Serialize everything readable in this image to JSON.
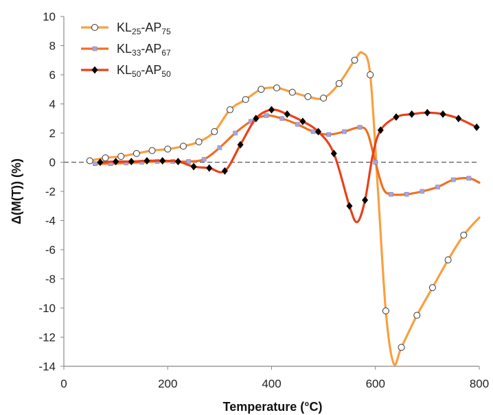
{
  "chart_data": {
    "type": "line",
    "xlabel": "Temperature (°C)",
    "ylabel": "Δ(M(T)) (%)",
    "xlim": [
      0,
      800
    ],
    "ylim": [
      -14,
      10
    ],
    "x_ticks": [
      0,
      200,
      400,
      600,
      800
    ],
    "y_ticks": [
      -14,
      -12,
      -10,
      -8,
      -6,
      -4,
      -2,
      0,
      2,
      4,
      6,
      8,
      10
    ],
    "reference_line": {
      "y": 0,
      "style": "dashed"
    },
    "legend": {
      "placement": "top-left"
    },
    "series": [
      {
        "name": "KL25-AP75",
        "name_parts": [
          {
            "t": "KL",
            "sub": false
          },
          {
            "t": "25",
            "sub": true
          },
          {
            "t": "-AP",
            "sub": false
          },
          {
            "t": "75",
            "sub": true
          }
        ],
        "color": "#F7A040",
        "marker": "circle-open",
        "marker_x": [
          50,
          80,
          110,
          140,
          170,
          200,
          230,
          260,
          290,
          320,
          350,
          380,
          410,
          440,
          470,
          500,
          530,
          560,
          590,
          620,
          650,
          680,
          710,
          740,
          770
        ],
        "marker_y": [
          0.1,
          0.3,
          0.4,
          0.6,
          0.8,
          0.9,
          1.1,
          1.4,
          2.1,
          3.6,
          4.3,
          5.0,
          5.1,
          4.8,
          4.5,
          4.4,
          5.4,
          7.0,
          6.0,
          -10.2,
          -12.7,
          -10.5,
          -8.6,
          -6.7,
          -5.0
        ],
        "curve_x": [
          50,
          80,
          110,
          140,
          170,
          200,
          230,
          260,
          290,
          320,
          350,
          380,
          410,
          440,
          470,
          500,
          530,
          560,
          575,
          590,
          605,
          620,
          635,
          650,
          680,
          710,
          740,
          770,
          800
        ],
        "curve_y": [
          0.1,
          0.3,
          0.4,
          0.6,
          0.8,
          0.9,
          1.1,
          1.4,
          2.1,
          3.6,
          4.3,
          5.0,
          5.1,
          4.8,
          4.5,
          4.4,
          5.4,
          7.0,
          7.5,
          6.0,
          -2.0,
          -10.2,
          -13.8,
          -12.7,
          -10.5,
          -8.6,
          -6.7,
          -5.0,
          -3.8
        ]
      },
      {
        "name": "KL33-AP67",
        "name_parts": [
          {
            "t": "KL",
            "sub": false
          },
          {
            "t": "33",
            "sub": true
          },
          {
            "t": "-AP",
            "sub": false
          },
          {
            "t": "67",
            "sub": true
          }
        ],
        "color": "#F07020",
        "marker": "square-lavender",
        "marker_x": [
          60,
          90,
          120,
          150,
          180,
          210,
          240,
          270,
          300,
          330,
          360,
          390,
          420,
          450,
          480,
          510,
          540,
          570,
          600,
          630,
          660,
          690,
          720,
          750,
          780
        ],
        "marker_y": [
          -0.1,
          -0.1,
          -0.05,
          0.0,
          0.05,
          0.05,
          0.05,
          0.2,
          1.0,
          2.0,
          2.8,
          3.2,
          3.0,
          2.6,
          2.1,
          1.9,
          2.1,
          2.4,
          0.0,
          -2.2,
          -2.2,
          -2.0,
          -1.7,
          -1.2,
          -1.1
        ],
        "curve_x": [
          60,
          90,
          120,
          150,
          180,
          210,
          240,
          270,
          300,
          330,
          360,
          390,
          420,
          450,
          480,
          510,
          540,
          570,
          585,
          600,
          615,
          630,
          660,
          690,
          720,
          750,
          780,
          800
        ],
        "curve_y": [
          -0.1,
          -0.1,
          -0.05,
          0.0,
          0.05,
          0.05,
          0.05,
          0.2,
          1.0,
          2.0,
          2.8,
          3.2,
          3.0,
          2.6,
          2.1,
          1.9,
          2.1,
          2.4,
          2.0,
          0.0,
          -1.8,
          -2.2,
          -2.2,
          -2.0,
          -1.7,
          -1.2,
          -1.1,
          -1.4
        ]
      },
      {
        "name": "KL50-AP50",
        "name_parts": [
          {
            "t": "KL",
            "sub": false
          },
          {
            "t": "50",
            "sub": true
          },
          {
            "t": "-AP",
            "sub": false
          },
          {
            "t": "50",
            "sub": true
          }
        ],
        "color": "#E8401C",
        "marker": "diamond-black",
        "marker_x": [
          70,
          100,
          130,
          160,
          190,
          220,
          250,
          280,
          310,
          340,
          370,
          400,
          430,
          460,
          490,
          520,
          550,
          580,
          610,
          640,
          670,
          700,
          730,
          760,
          795
        ],
        "marker_y": [
          0.0,
          0.05,
          0.05,
          0.1,
          0.1,
          0.05,
          -0.3,
          -0.4,
          -0.6,
          1.2,
          3.0,
          3.6,
          3.3,
          2.8,
          2.1,
          0.6,
          -3.0,
          -2.6,
          2.2,
          3.1,
          3.3,
          3.4,
          3.3,
          3.0,
          2.4
        ],
        "curve_x": [
          70,
          100,
          130,
          160,
          190,
          220,
          250,
          280,
          310,
          340,
          370,
          400,
          430,
          460,
          490,
          520,
          550,
          565,
          580,
          595,
          610,
          640,
          670,
          700,
          730,
          760,
          795
        ],
        "curve_y": [
          0.0,
          0.05,
          0.05,
          0.1,
          0.1,
          0.05,
          -0.3,
          -0.4,
          -0.6,
          1.2,
          3.0,
          3.6,
          3.3,
          2.8,
          2.1,
          0.6,
          -3.0,
          -4.1,
          -2.6,
          0.5,
          2.2,
          3.1,
          3.3,
          3.4,
          3.3,
          3.0,
          2.4
        ]
      }
    ]
  }
}
